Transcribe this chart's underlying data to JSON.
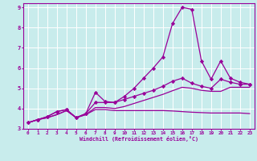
{
  "xlabel": "Windchill (Refroidissement éolien,°C)",
  "background_color": "#c8ecec",
  "grid_color": "#ffffff",
  "line_color": "#990099",
  "xlim": [
    -0.5,
    23.5
  ],
  "ylim": [
    3.0,
    9.2
  ],
  "yticks": [
    3,
    4,
    5,
    6,
    7,
    8,
    9
  ],
  "xticks": [
    0,
    1,
    2,
    3,
    4,
    5,
    6,
    7,
    8,
    9,
    10,
    11,
    12,
    13,
    14,
    15,
    16,
    17,
    18,
    19,
    20,
    21,
    22,
    23
  ],
  "series1_x": [
    0,
    1,
    2,
    3,
    4,
    5,
    6,
    7,
    8,
    9,
    10,
    11,
    12,
    13,
    14,
    15,
    16,
    17,
    18,
    19,
    20,
    21,
    22,
    23
  ],
  "series1_y": [
    3.3,
    3.45,
    3.6,
    3.85,
    3.95,
    3.55,
    3.75,
    4.8,
    4.35,
    4.3,
    4.6,
    5.0,
    5.5,
    6.0,
    6.55,
    8.2,
    9.0,
    8.9,
    6.35,
    5.45,
    6.35,
    5.5,
    5.3,
    5.2
  ],
  "series2_x": [
    0,
    1,
    2,
    3,
    4,
    5,
    6,
    7,
    8,
    9,
    10,
    11,
    12,
    13,
    14,
    15,
    16,
    17,
    18,
    19,
    20,
    21,
    22,
    23
  ],
  "series2_y": [
    3.3,
    3.45,
    3.6,
    3.85,
    3.95,
    3.55,
    3.75,
    4.3,
    4.3,
    4.3,
    4.45,
    4.6,
    4.75,
    4.9,
    5.1,
    5.35,
    5.5,
    5.25,
    5.1,
    5.0,
    5.45,
    5.3,
    5.2,
    5.2
  ],
  "series3_x": [
    0,
    1,
    2,
    3,
    4,
    5,
    6,
    7,
    8,
    9,
    10,
    11,
    12,
    13,
    14,
    15,
    16,
    17,
    18,
    19,
    20,
    21,
    22,
    23
  ],
  "series3_y": [
    3.3,
    3.45,
    3.55,
    3.7,
    3.9,
    3.55,
    3.7,
    3.95,
    3.95,
    3.9,
    3.9,
    3.9,
    3.9,
    3.9,
    3.9,
    3.88,
    3.85,
    3.82,
    3.8,
    3.78,
    3.78,
    3.78,
    3.78,
    3.75
  ],
  "series4_x": [
    0,
    1,
    2,
    3,
    4,
    5,
    6,
    7,
    8,
    9,
    10,
    11,
    12,
    13,
    14,
    15,
    16,
    17,
    18,
    19,
    20,
    21,
    22,
    23
  ],
  "series4_y": [
    3.3,
    3.45,
    3.55,
    3.7,
    3.9,
    3.55,
    3.7,
    4.05,
    4.05,
    4.0,
    4.1,
    4.25,
    4.4,
    4.55,
    4.7,
    4.88,
    5.05,
    5.0,
    4.9,
    4.85,
    4.85,
    5.05,
    5.05,
    5.05
  ]
}
